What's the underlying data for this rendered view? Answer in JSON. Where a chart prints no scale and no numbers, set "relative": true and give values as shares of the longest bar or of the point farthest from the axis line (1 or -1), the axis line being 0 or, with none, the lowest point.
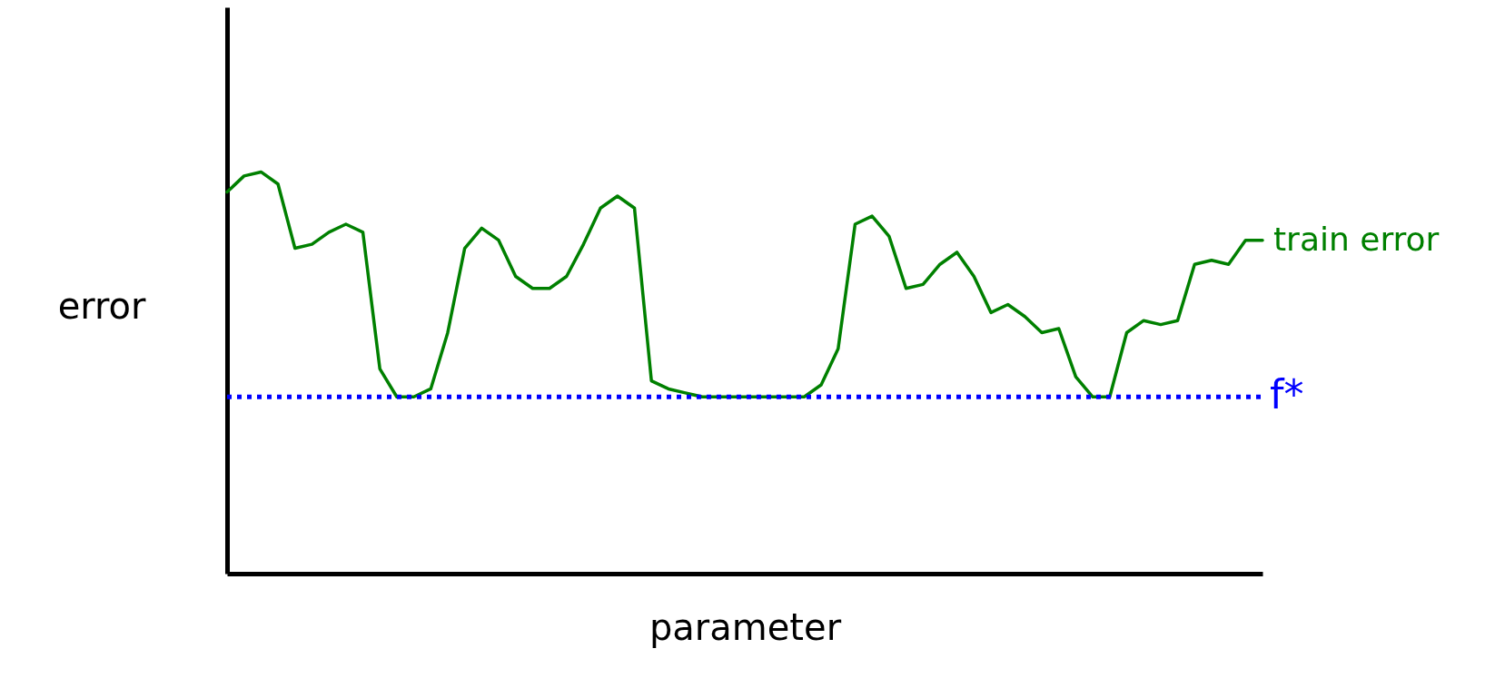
{
  "chart_data": {
    "type": "line",
    "xlabel": "parameter",
    "ylabel": "error",
    "relative": true,
    "categories": [
      null,
      null,
      null,
      null,
      null,
      null,
      null,
      null,
      null,
      null,
      null,
      null,
      null,
      null,
      null,
      null,
      null,
      null,
      null,
      null,
      null,
      null,
      null,
      null,
      null,
      null,
      null,
      null,
      null,
      null,
      null,
      null,
      null,
      null,
      null,
      null,
      null,
      null,
      null,
      null,
      null,
      null,
      null,
      null,
      null,
      null,
      null,
      null,
      null,
      null,
      null,
      null,
      null,
      null,
      null,
      null,
      null,
      null,
      null,
      null,
      null,
      null
    ],
    "series": [
      {
        "name": "train error",
        "color": "#008000",
        "values": [
          0.95,
          0.99,
          1.0,
          0.97,
          0.81,
          0.82,
          0.85,
          0.87,
          0.85,
          0.51,
          0.44,
          0.44,
          0.46,
          0.6,
          0.81,
          0.86,
          0.83,
          0.74,
          0.71,
          0.71,
          0.74,
          0.82,
          0.91,
          0.94,
          0.91,
          0.48,
          0.46,
          0.45,
          0.44,
          0.44,
          0.44,
          0.44,
          0.44,
          0.44,
          0.44,
          0.47,
          0.56,
          0.87,
          0.89,
          0.84,
          0.71,
          0.72,
          0.77,
          0.8,
          0.74,
          0.65,
          0.67,
          0.64,
          0.6,
          0.61,
          0.49,
          0.44,
          0.44,
          0.6,
          0.63,
          0.62,
          0.63,
          0.77,
          0.78,
          0.77,
          0.83,
          0.83
        ]
      }
    ],
    "ref_lines": [
      {
        "axis": "y",
        "value": 0.44,
        "label": "f*",
        "color": "#0000ff",
        "line_style": "dotted"
      }
    ]
  }
}
